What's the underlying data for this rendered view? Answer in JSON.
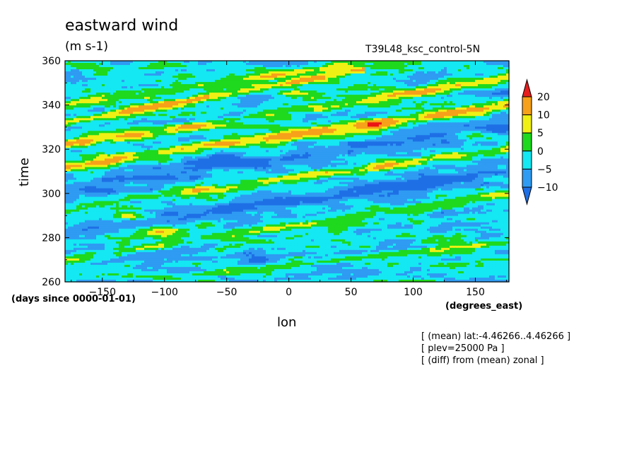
{
  "chart_data": {
    "type": "heatmap",
    "title": "eastward wind",
    "units": "(m s-1)",
    "case_label": "T39L48_ksc_control-5N",
    "xlabel": "lon",
    "ylabel": "time",
    "xunits": "(degrees_east)",
    "yunits": "(days since 0000-01-01)",
    "xlim": [
      -180,
      177
    ],
    "ylim": [
      260,
      360
    ],
    "xticks": [
      -150,
      -100,
      -50,
      0,
      50,
      100,
      150
    ],
    "yticks": [
      260,
      280,
      300,
      320,
      340,
      360
    ],
    "levels": [
      -10,
      -5,
      0,
      5,
      10,
      20
    ],
    "colorbar": {
      "orientation": "vertical",
      "placement": "right",
      "extend": "both",
      "colors": [
        "#1e6fe6",
        "#2f9bf2",
        "#14e8f2",
        "#1ed91e",
        "#f0f014",
        "#f7a01a",
        "#eb1414",
        "#e61e1e"
      ],
      "labels": [
        "20",
        "10",
        "5",
        "0",
        "-5",
        "-10"
      ]
    },
    "features": [
      {
        "lon0": -180,
        "t0": 312,
        "lon1": 177,
        "t1": 340,
        "amp": 14,
        "width": 2.6
      },
      {
        "lon0": -180,
        "t0": 322,
        "lon1": 177,
        "t1": 352,
        "amp": 11,
        "width": 2.2
      },
      {
        "lon0": -180,
        "t0": 332,
        "lon1": 40,
        "t1": 354,
        "amp": 13,
        "width": 1.8
      },
      {
        "lon0": -180,
        "t0": 270,
        "lon1": 177,
        "t1": 300,
        "amp": 9,
        "width": 2.2
      },
      {
        "lon0": -180,
        "t0": 293,
        "lon1": 177,
        "t1": 320,
        "amp": 8,
        "width": 2.0
      },
      {
        "lon0": -90,
        "t0": 262,
        "lon1": 177,
        "t1": 278,
        "amp": 7,
        "width": 1.6
      },
      {
        "lon0": -180,
        "t0": 340,
        "lon1": 177,
        "t1": 368,
        "amp": 9,
        "width": 2.0
      },
      {
        "lon0": -180,
        "t0": 282,
        "lon1": 177,
        "t1": 310,
        "amp": -7,
        "width": 3.0
      },
      {
        "lon0": -180,
        "t0": 302,
        "lon1": 177,
        "t1": 330,
        "amp": -6,
        "width": 3.2
      }
    ],
    "blobs": [
      {
        "lon": -100,
        "t": 283,
        "amp": 16,
        "rlon": 16,
        "rt": 2.2
      },
      {
        "lon": -128,
        "t": 290,
        "amp": 12,
        "rlon": 12,
        "rt": 1.8
      },
      {
        "lon": 65,
        "t": 331,
        "amp": 13,
        "rlon": 15,
        "rt": 1.8
      },
      {
        "lon": 145,
        "t": 327,
        "amp": 9,
        "rlon": 14,
        "rt": 2.2
      },
      {
        "lon": -95,
        "t": 358,
        "amp": 11,
        "rlon": 18,
        "rt": 1.6
      },
      {
        "lon": -160,
        "t": 357,
        "amp": 9,
        "rlon": 15,
        "rt": 2.0
      },
      {
        "lon": -140,
        "t": 340,
        "amp": 6,
        "rlon": 28,
        "rt": 1.5
      },
      {
        "lon": 105,
        "t": 287,
        "amp": 8,
        "rlon": 14,
        "rt": 1.8
      },
      {
        "lon": 10,
        "t": 345,
        "amp": 7,
        "rlon": 18,
        "rt": 2.0
      },
      {
        "lon": 40,
        "t": 283,
        "amp": 8,
        "rlon": 16,
        "rt": 2.0
      },
      {
        "lon": -60,
        "t": 315,
        "amp": -8,
        "rlon": 22,
        "rt": 3.0
      },
      {
        "lon": 120,
        "t": 305,
        "amp": -7,
        "rlon": 25,
        "rt": 4.0
      },
      {
        "lon": -30,
        "t": 270,
        "amp": -7,
        "rlon": 22,
        "rt": 3.0
      },
      {
        "lon": 160,
        "t": 345,
        "amp": -7,
        "rlon": 20,
        "rt": 3.0
      },
      {
        "lon": -150,
        "t": 300,
        "amp": -6,
        "rlon": 20,
        "rt": 3.0
      }
    ]
  },
  "annotations": [
    "[ (mean) lat:-4.46266..4.46266 ]",
    "[ plev=25000 Pa ]",
    "[ (diff) from (mean) zonal ]"
  ]
}
